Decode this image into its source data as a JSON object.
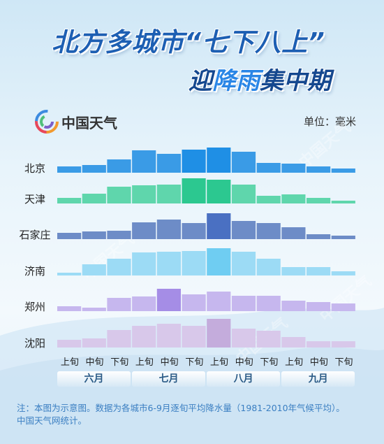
{
  "title_line1": "北方多城市“七下八上”",
  "title_line2_pre": "迎",
  "title_line2_highlight": "降雨",
  "title_line2_post": "集中期",
  "logo_text": "中国天气",
  "unit": "单位：毫米",
  "footnote_line1": "注：本图为示意图。数据为各城市6-9月逐旬平均降水量（1981-2010年气候平均）。",
  "footnote_line2": "中国天气网统计。",
  "months": [
    "六月",
    "七月",
    "八月",
    "九月"
  ],
  "watermark": "中国天气",
  "chart_data": {
    "type": "bar",
    "categories": [
      "上旬",
      "中旬",
      "下旬",
      "上旬",
      "中旬",
      "下旬",
      "上旬",
      "中旬",
      "下旬",
      "上旬",
      "中旬",
      "下旬"
    ],
    "series": [
      {
        "name": "北京",
        "color": "#3a9be6",
        "peak": "#1f8fe5",
        "values": [
          9,
          11,
          19,
          32,
          27,
          33,
          36,
          30,
          14,
          13,
          9,
          6
        ]
      },
      {
        "name": "天津",
        "color": "#5fd6ac",
        "peak": "#2cc890",
        "values": [
          8,
          14,
          24,
          26,
          27,
          36,
          34,
          27,
          11,
          13,
          8,
          4
        ]
      },
      {
        "name": "石家庄",
        "color": "#6d8cc7",
        "peak": "#4a70c2",
        "values": [
          9,
          11,
          12,
          24,
          28,
          23,
          37,
          26,
          23,
          17,
          7,
          5
        ]
      },
      {
        "name": "济南",
        "color": "#9cdbf5",
        "peak": "#6fcdf2",
        "values": [
          4,
          16,
          24,
          33,
          34,
          35,
          39,
          34,
          24,
          12,
          12,
          6
        ]
      },
      {
        "name": "郑州",
        "color": "#c6b7ee",
        "peak": "#a58de6",
        "values": [
          7,
          5,
          19,
          21,
          32,
          24,
          28,
          22,
          22,
          15,
          13,
          11
        ]
      },
      {
        "name": "沈阳",
        "color": "#d8c8ea",
        "peak": "#c4acdc",
        "values": [
          11,
          13,
          25,
          31,
          34,
          31,
          41,
          27,
          24,
          15,
          9,
          9
        ]
      }
    ],
    "month_groups": [
      "六月",
      "七月",
      "八月",
      "九月"
    ]
  }
}
